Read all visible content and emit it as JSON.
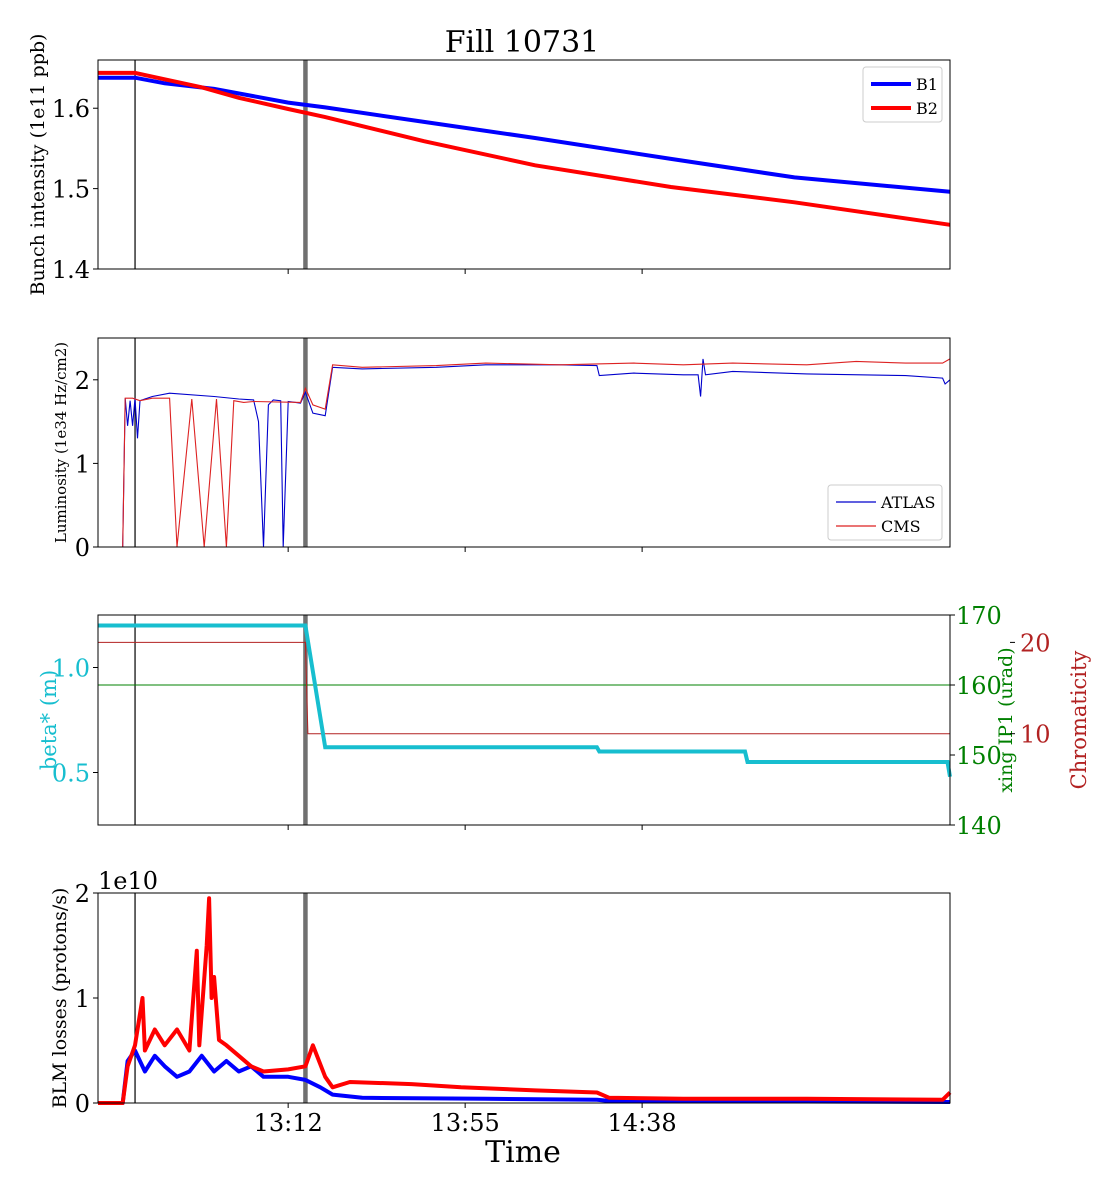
{
  "title": "Fill 10731",
  "xlabel": "Time",
  "x_ticks": [
    "13:12",
    "13:55",
    "14:38"
  ],
  "colors": {
    "b1": "#0000ff",
    "b2": "#ff0000",
    "atlas": "#0000cc",
    "cms": "#dd2222",
    "beta": "#17becf",
    "xing": "#008000",
    "chroma": "#b22222",
    "marker_thin": "#000000",
    "marker_thick": "#707070"
  },
  "chart_data": [
    {
      "type": "line",
      "ylabel": "Bunch intensity (1e11 ppb)",
      "ylim": [
        1.4,
        1.66
      ],
      "yticks": [
        "1.4",
        "1.5",
        "1.6"
      ],
      "legend": {
        "placement": "top-right",
        "entries": [
          "B1",
          "B2"
        ]
      },
      "series": [
        {
          "name": "B1",
          "points": [
            [
              12.43,
              1.638
            ],
            [
              12.58,
              1.638
            ],
            [
              12.7,
              1.631
            ],
            [
              12.9,
              1.624
            ],
            [
              13.2,
              1.607
            ],
            [
              13.35,
              1.601
            ],
            [
              13.75,
              1.583
            ],
            [
              14.2,
              1.563
            ],
            [
              14.75,
              1.537
            ],
            [
              15.25,
              1.514
            ],
            [
              15.88,
              1.496
            ]
          ]
        },
        {
          "name": "B2",
          "points": [
            [
              12.43,
              1.644
            ],
            [
              12.58,
              1.644
            ],
            [
              12.7,
              1.636
            ],
            [
              12.85,
              1.626
            ],
            [
              13.0,
              1.613
            ],
            [
              13.2,
              1.599
            ],
            [
              13.35,
              1.589
            ],
            [
              13.75,
              1.559
            ],
            [
              14.2,
              1.529
            ],
            [
              14.75,
              1.502
            ],
            [
              15.25,
              1.483
            ],
            [
              15.88,
              1.455
            ]
          ]
        }
      ]
    },
    {
      "type": "line",
      "ylabel": "Luminosity (1e34 Hz/cm2)",
      "ylim": [
        0,
        2.5
      ],
      "yticks": [
        "0",
        "1",
        "2"
      ],
      "legend": {
        "placement": "bottom-right",
        "entries": [
          "ATLAS",
          "CMS"
        ]
      },
      "series": [
        {
          "name": "ATLAS",
          "points": [
            [
              12.43,
              0
            ],
            [
              12.53,
              0
            ],
            [
              12.54,
              1.78
            ],
            [
              12.55,
              1.45
            ],
            [
              12.56,
              1.75
            ],
            [
              12.57,
              1.45
            ],
            [
              12.58,
              1.78
            ],
            [
              12.59,
              1.3
            ],
            [
              12.6,
              1.75
            ],
            [
              12.65,
              1.8
            ],
            [
              12.72,
              1.84
            ],
            [
              12.9,
              1.8
            ],
            [
              13.0,
              1.77
            ],
            [
              13.06,
              1.76
            ],
            [
              13.08,
              1.5
            ],
            [
              13.1,
              0
            ],
            [
              13.12,
              1.7
            ],
            [
              13.14,
              1.76
            ],
            [
              13.17,
              1.75
            ],
            [
              13.18,
              0
            ],
            [
              13.2,
              1.74
            ],
            [
              13.23,
              1.73
            ],
            [
              13.25,
              1.72
            ],
            [
              13.27,
              1.85
            ],
            [
              13.3,
              1.6
            ],
            [
              13.35,
              1.57
            ],
            [
              13.38,
              2.15
            ],
            [
              13.5,
              2.13
            ],
            [
              13.8,
              2.15
            ],
            [
              14.0,
              2.18
            ],
            [
              14.3,
              2.18
            ],
            [
              14.45,
              2.17
            ],
            [
              14.46,
              2.05
            ],
            [
              14.6,
              2.08
            ],
            [
              14.8,
              2.06
            ],
            [
              14.86,
              2.06
            ],
            [
              14.87,
              1.8
            ],
            [
              14.88,
              2.25
            ],
            [
              14.89,
              2.06
            ],
            [
              15.0,
              2.1
            ],
            [
              15.3,
              2.07
            ],
            [
              15.7,
              2.05
            ],
            [
              15.85,
              2.02
            ],
            [
              15.86,
              1.95
            ],
            [
              15.88,
              2.0
            ]
          ]
        },
        {
          "name": "CMS",
          "points": [
            [
              12.43,
              0
            ],
            [
              12.53,
              0
            ],
            [
              12.54,
              1.78
            ],
            [
              12.57,
              1.78
            ],
            [
              12.6,
              1.75
            ],
            [
              12.65,
              1.78
            ],
            [
              12.72,
              1.78
            ],
            [
              12.75,
              0
            ],
            [
              12.81,
              1.77
            ],
            [
              12.86,
              0
            ],
            [
              12.91,
              1.77
            ],
            [
              12.95,
              0
            ],
            [
              12.98,
              1.75
            ],
            [
              13.02,
              1.73
            ],
            [
              13.06,
              1.74
            ],
            [
              13.25,
              1.73
            ],
            [
              13.27,
              1.9
            ],
            [
              13.3,
              1.7
            ],
            [
              13.35,
              1.65
            ],
            [
              13.38,
              2.18
            ],
            [
              13.5,
              2.15
            ],
            [
              13.8,
              2.17
            ],
            [
              14.0,
              2.2
            ],
            [
              14.3,
              2.18
            ],
            [
              14.6,
              2.2
            ],
            [
              14.8,
              2.18
            ],
            [
              15.0,
              2.2
            ],
            [
              15.3,
              2.18
            ],
            [
              15.5,
              2.22
            ],
            [
              15.7,
              2.2
            ],
            [
              15.85,
              2.2
            ],
            [
              15.88,
              2.25
            ]
          ]
        }
      ]
    },
    {
      "type": "line",
      "ylabel": "beta* (m)",
      "ylim": [
        0.25,
        1.25
      ],
      "yticks": [
        "0.5",
        "1.0"
      ],
      "right_axes": [
        {
          "label": "xing IP1 (urad)",
          "ylim": [
            140,
            170
          ],
          "yticks": [
            "140",
            "150",
            "160",
            "170"
          ]
        },
        {
          "label": "Chromaticity",
          "ylim": [
            0,
            23
          ],
          "yticks": [
            "10",
            "20"
          ]
        }
      ],
      "series": [
        {
          "axis": "left",
          "points": [
            [
              12.43,
              1.2
            ],
            [
              13.27,
              1.2
            ],
            [
              13.35,
              0.62
            ],
            [
              13.4,
              0.62
            ],
            [
              14.45,
              0.62
            ],
            [
              14.46,
              0.6
            ],
            [
              15.05,
              0.6
            ],
            [
              15.06,
              0.55
            ],
            [
              15.87,
              0.55
            ],
            [
              15.88,
              0.48
            ]
          ],
          "width": 4
        },
        {
          "axis": "xing",
          "points": [
            [
              12.43,
              160
            ],
            [
              15.88,
              160
            ]
          ],
          "width": 1
        },
        {
          "axis": "chroma",
          "points": [
            [
              12.43,
              20
            ],
            [
              13.27,
              20
            ],
            [
              13.28,
              10
            ],
            [
              15.88,
              10
            ]
          ],
          "width": 1
        }
      ]
    },
    {
      "type": "line",
      "ylabel": "BLM losses (protons/s)",
      "offset_label": "1e10",
      "ylim": [
        0,
        2.0
      ],
      "yticks": [
        "0",
        "1",
        "2"
      ],
      "series": [
        {
          "name": "B1",
          "points": [
            [
              12.43,
              0
            ],
            [
              12.53,
              0
            ],
            [
              12.55,
              0.4
            ],
            [
              12.58,
              0.5
            ],
            [
              12.62,
              0.3
            ],
            [
              12.66,
              0.45
            ],
            [
              12.7,
              0.35
            ],
            [
              12.75,
              0.25
            ],
            [
              12.8,
              0.3
            ],
            [
              12.85,
              0.45
            ],
            [
              12.9,
              0.3
            ],
            [
              12.95,
              0.4
            ],
            [
              13.0,
              0.3
            ],
            [
              13.05,
              0.35
            ],
            [
              13.1,
              0.25
            ],
            [
              13.2,
              0.25
            ],
            [
              13.27,
              0.22
            ],
            [
              13.33,
              0.15
            ],
            [
              13.38,
              0.08
            ],
            [
              13.5,
              0.05
            ],
            [
              14.0,
              0.04
            ],
            [
              14.45,
              0.03
            ],
            [
              14.5,
              0.02
            ],
            [
              15.88,
              0.01
            ]
          ]
        },
        {
          "name": "B2",
          "points": [
            [
              12.43,
              0
            ],
            [
              12.53,
              0
            ],
            [
              12.55,
              0.35
            ],
            [
              12.58,
              0.55
            ],
            [
              12.61,
              1.0
            ],
            [
              12.62,
              0.5
            ],
            [
              12.66,
              0.7
            ],
            [
              12.7,
              0.55
            ],
            [
              12.75,
              0.7
            ],
            [
              12.8,
              0.5
            ],
            [
              12.83,
              1.45
            ],
            [
              12.84,
              0.55
            ],
            [
              12.87,
              1.5
            ],
            [
              12.88,
              1.95
            ],
            [
              12.89,
              1.0
            ],
            [
              12.9,
              1.2
            ],
            [
              12.92,
              0.6
            ],
            [
              12.95,
              0.55
            ],
            [
              13.0,
              0.45
            ],
            [
              13.05,
              0.35
            ],
            [
              13.1,
              0.3
            ],
            [
              13.2,
              0.32
            ],
            [
              13.27,
              0.35
            ],
            [
              13.3,
              0.55
            ],
            [
              13.35,
              0.25
            ],
            [
              13.38,
              0.15
            ],
            [
              13.45,
              0.2
            ],
            [
              13.7,
              0.18
            ],
            [
              13.9,
              0.15
            ],
            [
              14.2,
              0.12
            ],
            [
              14.45,
              0.1
            ],
            [
              14.5,
              0.05
            ],
            [
              14.8,
              0.04
            ],
            [
              15.3,
              0.04
            ],
            [
              15.85,
              0.03
            ],
            [
              15.88,
              0.1
            ]
          ]
        }
      ]
    }
  ]
}
